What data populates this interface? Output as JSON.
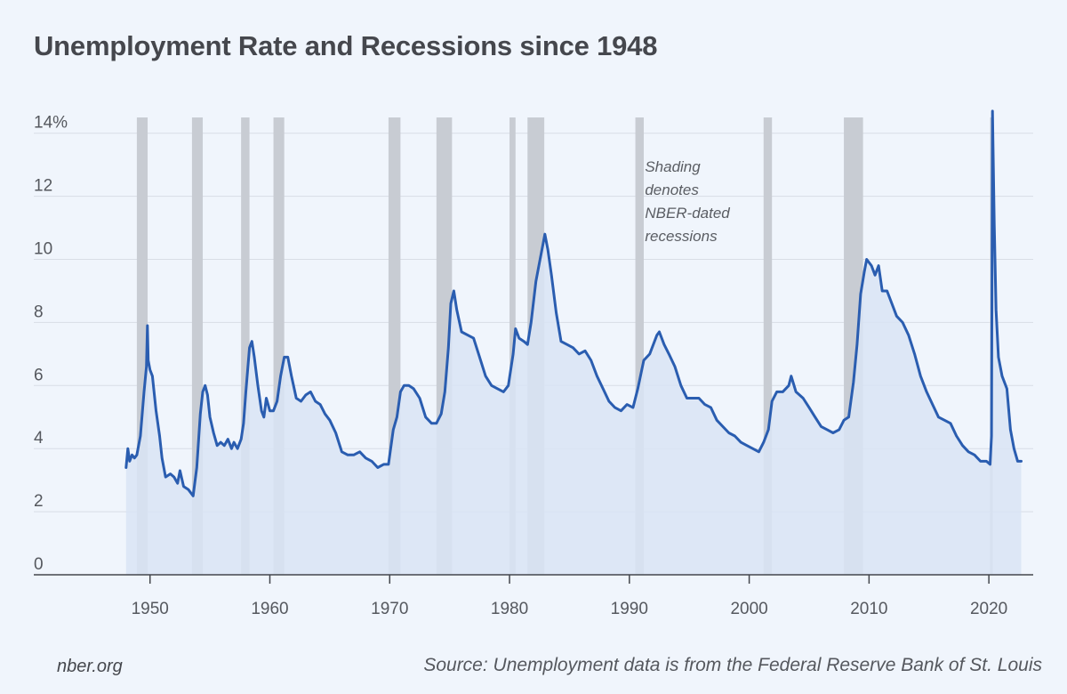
{
  "title": "Unemployment Rate and Recessions since 1948",
  "footer": {
    "site": "nber.org",
    "source": "Source: Unemployment data is from the Federal Reserve Bank of St. Louis"
  },
  "colors": {
    "line": "#2a5db0",
    "area": "#d9e4f4",
    "recession": "#c8ccd3",
    "grid": "#d8dde6",
    "axis": "#44474d"
  },
  "chart_data": {
    "type": "area",
    "title": "Unemployment Rate and Recessions since 1948",
    "xlabel": "",
    "ylabel": "",
    "xlim": [
      1940.3,
      2023.7
    ],
    "ylim": [
      0,
      14.5
    ],
    "grid": true,
    "y_ticks": [
      0,
      2,
      4,
      6,
      8,
      10,
      12,
      14
    ],
    "y_tick_labels": [
      "0",
      "2",
      "4",
      "6",
      "8",
      "10",
      "12",
      "14%"
    ],
    "x_ticks": [
      1950,
      1960,
      1970,
      1980,
      1990,
      2000,
      2010,
      2020
    ],
    "x_tick_labels": [
      "1950",
      "1960",
      "1970",
      "1980",
      "1990",
      "2000",
      "2010",
      "2020"
    ],
    "annotation": [
      "Shading",
      "denotes",
      "NBER-dated",
      "recessions"
    ],
    "recessions": [
      [
        1948.9,
        1949.8
      ],
      [
        1953.5,
        1954.4
      ],
      [
        1957.6,
        1958.3
      ],
      [
        1960.3,
        1961.2
      ],
      [
        1969.9,
        1970.9
      ],
      [
        1973.9,
        1975.2
      ],
      [
        1980.0,
        1980.5
      ],
      [
        1981.5,
        1982.9
      ],
      [
        1990.5,
        1991.2
      ],
      [
        2001.2,
        2001.9
      ],
      [
        2007.9,
        2009.5
      ],
      [
        2020.1,
        2020.3
      ]
    ],
    "series": [
      {
        "name": "",
        "points": [
          [
            1948.0,
            3.4
          ],
          [
            1948.15,
            4.0
          ],
          [
            1948.3,
            3.6
          ],
          [
            1948.5,
            3.8
          ],
          [
            1948.7,
            3.7
          ],
          [
            1948.9,
            3.8
          ],
          [
            1949.2,
            4.4
          ],
          [
            1949.5,
            5.8
          ],
          [
            1949.7,
            6.6
          ],
          [
            1949.78,
            7.9
          ],
          [
            1949.85,
            6.8
          ],
          [
            1950.0,
            6.5
          ],
          [
            1950.2,
            6.3
          ],
          [
            1950.5,
            5.2
          ],
          [
            1950.8,
            4.4
          ],
          [
            1951.0,
            3.7
          ],
          [
            1951.3,
            3.1
          ],
          [
            1951.7,
            3.2
          ],
          [
            1952.0,
            3.1
          ],
          [
            1952.3,
            2.9
          ],
          [
            1952.5,
            3.3
          ],
          [
            1952.8,
            2.8
          ],
          [
            1953.2,
            2.7
          ],
          [
            1953.6,
            2.5
          ],
          [
            1953.9,
            3.4
          ],
          [
            1954.2,
            5.1
          ],
          [
            1954.4,
            5.8
          ],
          [
            1954.6,
            6.0
          ],
          [
            1954.8,
            5.7
          ],
          [
            1955.0,
            5.0
          ],
          [
            1955.3,
            4.5
          ],
          [
            1955.6,
            4.1
          ],
          [
            1955.9,
            4.2
          ],
          [
            1956.2,
            4.1
          ],
          [
            1956.5,
            4.3
          ],
          [
            1956.8,
            4.0
          ],
          [
            1957.0,
            4.2
          ],
          [
            1957.3,
            4.0
          ],
          [
            1957.6,
            4.3
          ],
          [
            1957.8,
            4.8
          ],
          [
            1958.0,
            5.8
          ],
          [
            1958.3,
            7.2
          ],
          [
            1958.5,
            7.4
          ],
          [
            1958.7,
            6.9
          ],
          [
            1959.0,
            6.0
          ],
          [
            1959.3,
            5.2
          ],
          [
            1959.5,
            5.0
          ],
          [
            1959.7,
            5.6
          ],
          [
            1960.0,
            5.2
          ],
          [
            1960.3,
            5.2
          ],
          [
            1960.6,
            5.5
          ],
          [
            1960.9,
            6.3
          ],
          [
            1961.2,
            6.9
          ],
          [
            1961.5,
            6.9
          ],
          [
            1961.8,
            6.3
          ],
          [
            1962.2,
            5.6
          ],
          [
            1962.6,
            5.5
          ],
          [
            1963.0,
            5.7
          ],
          [
            1963.4,
            5.8
          ],
          [
            1963.8,
            5.5
          ],
          [
            1964.2,
            5.4
          ],
          [
            1964.6,
            5.1
          ],
          [
            1965.0,
            4.9
          ],
          [
            1965.5,
            4.5
          ],
          [
            1966.0,
            3.9
          ],
          [
            1966.5,
            3.8
          ],
          [
            1967.0,
            3.8
          ],
          [
            1967.5,
            3.9
          ],
          [
            1968.0,
            3.7
          ],
          [
            1968.5,
            3.6
          ],
          [
            1969.0,
            3.4
          ],
          [
            1969.5,
            3.5
          ],
          [
            1969.9,
            3.5
          ],
          [
            1970.3,
            4.6
          ],
          [
            1970.6,
            5.0
          ],
          [
            1970.9,
            5.8
          ],
          [
            1971.2,
            6.0
          ],
          [
            1971.6,
            6.0
          ],
          [
            1972.0,
            5.9
          ],
          [
            1972.5,
            5.6
          ],
          [
            1973.0,
            5.0
          ],
          [
            1973.5,
            4.8
          ],
          [
            1973.9,
            4.8
          ],
          [
            1974.3,
            5.1
          ],
          [
            1974.6,
            5.8
          ],
          [
            1974.9,
            7.2
          ],
          [
            1975.1,
            8.6
          ],
          [
            1975.35,
            9.0
          ],
          [
            1975.6,
            8.4
          ],
          [
            1976.0,
            7.7
          ],
          [
            1976.5,
            7.6
          ],
          [
            1977.0,
            7.5
          ],
          [
            1977.5,
            6.9
          ],
          [
            1978.0,
            6.3
          ],
          [
            1978.5,
            6.0
          ],
          [
            1979.0,
            5.9
          ],
          [
            1979.5,
            5.8
          ],
          [
            1979.9,
            6.0
          ],
          [
            1980.3,
            7.0
          ],
          [
            1980.5,
            7.8
          ],
          [
            1980.8,
            7.5
          ],
          [
            1981.2,
            7.4
          ],
          [
            1981.5,
            7.3
          ],
          [
            1981.8,
            8.0
          ],
          [
            1982.2,
            9.3
          ],
          [
            1982.5,
            9.9
          ],
          [
            1982.8,
            10.5
          ],
          [
            1982.95,
            10.8
          ],
          [
            1983.2,
            10.3
          ],
          [
            1983.5,
            9.5
          ],
          [
            1983.9,
            8.3
          ],
          [
            1984.3,
            7.4
          ],
          [
            1984.8,
            7.3
          ],
          [
            1985.3,
            7.2
          ],
          [
            1985.8,
            7.0
          ],
          [
            1986.3,
            7.1
          ],
          [
            1986.8,
            6.8
          ],
          [
            1987.3,
            6.3
          ],
          [
            1987.8,
            5.9
          ],
          [
            1988.3,
            5.5
          ],
          [
            1988.8,
            5.3
          ],
          [
            1989.3,
            5.2
          ],
          [
            1989.8,
            5.4
          ],
          [
            1990.3,
            5.3
          ],
          [
            1990.7,
            5.9
          ],
          [
            1991.2,
            6.8
          ],
          [
            1991.7,
            7.0
          ],
          [
            1992.3,
            7.6
          ],
          [
            1992.5,
            7.7
          ],
          [
            1992.9,
            7.3
          ],
          [
            1993.3,
            7.0
          ],
          [
            1993.8,
            6.6
          ],
          [
            1994.3,
            6.0
          ],
          [
            1994.8,
            5.6
          ],
          [
            1995.3,
            5.6
          ],
          [
            1995.8,
            5.6
          ],
          [
            1996.3,
            5.4
          ],
          [
            1996.8,
            5.3
          ],
          [
            1997.3,
            4.9
          ],
          [
            1997.8,
            4.7
          ],
          [
            1998.3,
            4.5
          ],
          [
            1998.8,
            4.4
          ],
          [
            1999.3,
            4.2
          ],
          [
            1999.8,
            4.1
          ],
          [
            2000.3,
            4.0
          ],
          [
            2000.8,
            3.9
          ],
          [
            2001.2,
            4.2
          ],
          [
            2001.6,
            4.6
          ],
          [
            2001.9,
            5.5
          ],
          [
            2002.3,
            5.8
          ],
          [
            2002.8,
            5.8
          ],
          [
            2003.3,
            6.0
          ],
          [
            2003.5,
            6.3
          ],
          [
            2003.9,
            5.8
          ],
          [
            2004.5,
            5.6
          ],
          [
            2005.0,
            5.3
          ],
          [
            2005.5,
            5.0
          ],
          [
            2006.0,
            4.7
          ],
          [
            2006.5,
            4.6
          ],
          [
            2007.0,
            4.5
          ],
          [
            2007.5,
            4.6
          ],
          [
            2007.9,
            4.9
          ],
          [
            2008.3,
            5.0
          ],
          [
            2008.7,
            6.1
          ],
          [
            2009.0,
            7.3
          ],
          [
            2009.3,
            8.9
          ],
          [
            2009.6,
            9.6
          ],
          [
            2009.8,
            10.0
          ],
          [
            2010.2,
            9.8
          ],
          [
            2010.5,
            9.5
          ],
          [
            2010.8,
            9.8
          ],
          [
            2011.1,
            9.0
          ],
          [
            2011.5,
            9.0
          ],
          [
            2011.9,
            8.6
          ],
          [
            2012.3,
            8.2
          ],
          [
            2012.8,
            8.0
          ],
          [
            2013.3,
            7.6
          ],
          [
            2013.8,
            7.0
          ],
          [
            2014.3,
            6.3
          ],
          [
            2014.8,
            5.8
          ],
          [
            2015.3,
            5.4
          ],
          [
            2015.8,
            5.0
          ],
          [
            2016.3,
            4.9
          ],
          [
            2016.8,
            4.8
          ],
          [
            2017.3,
            4.4
          ],
          [
            2017.8,
            4.1
          ],
          [
            2018.3,
            3.9
          ],
          [
            2018.8,
            3.8
          ],
          [
            2019.3,
            3.6
          ],
          [
            2019.8,
            3.6
          ],
          [
            2020.1,
            3.5
          ],
          [
            2020.22,
            4.4
          ],
          [
            2020.3,
            14.7
          ],
          [
            2020.45,
            11.1
          ],
          [
            2020.6,
            8.4
          ],
          [
            2020.8,
            6.9
          ],
          [
            2021.1,
            6.3
          ],
          [
            2021.5,
            5.9
          ],
          [
            2021.8,
            4.6
          ],
          [
            2022.1,
            4.0
          ],
          [
            2022.4,
            3.6
          ],
          [
            2022.7,
            3.6
          ]
        ]
      }
    ]
  }
}
